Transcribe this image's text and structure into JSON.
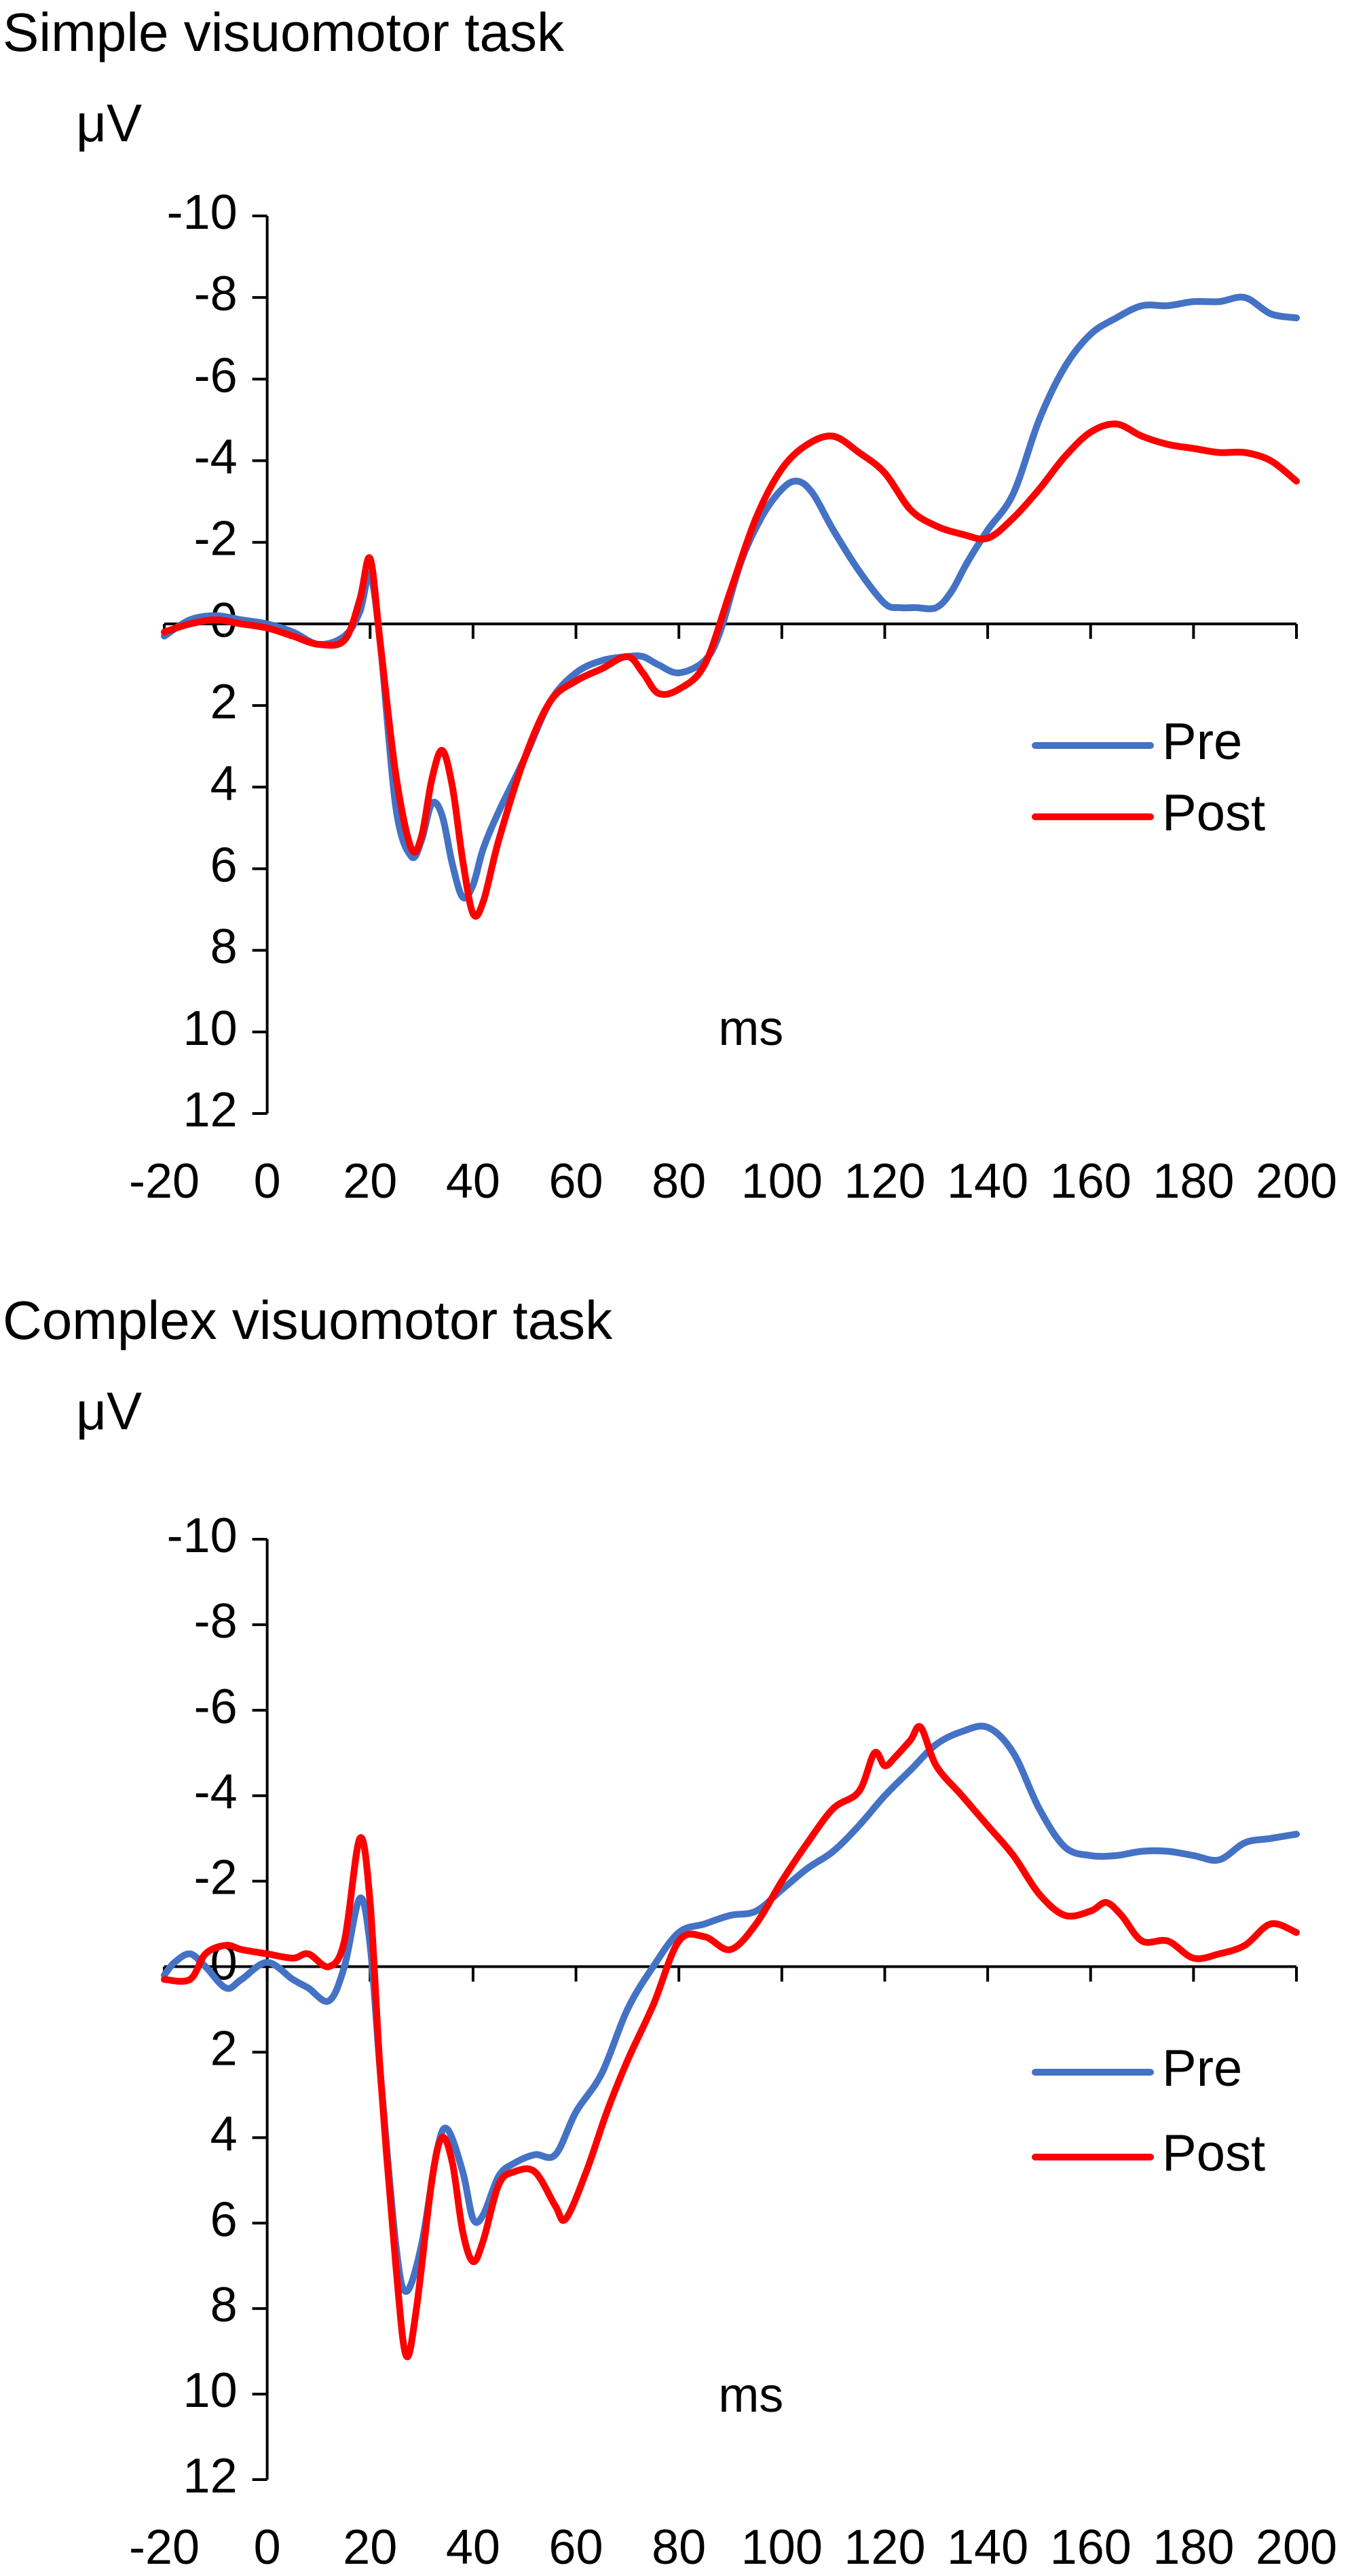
{
  "chart_data": [
    {
      "type": "line",
      "title": "Simple visuomotor task",
      "ylabel": "μV",
      "xlabel": "ms",
      "xlim": [
        -20,
        200
      ],
      "ylim": [
        12,
        -10
      ],
      "y_inverted": true,
      "x_ticks": [
        -20,
        0,
        20,
        40,
        60,
        80,
        100,
        120,
        140,
        160,
        180,
        200
      ],
      "y_ticks": [
        -10,
        -8,
        -6,
        -4,
        -2,
        0,
        2,
        4,
        6,
        8,
        10,
        12
      ],
      "grid": false,
      "legend_position": "right-middle",
      "series": [
        {
          "name": "Pre",
          "color": "#4472C4",
          "points": [
            [
              -20,
              0.3
            ],
            [
              -15,
              -0.1
            ],
            [
              -10,
              -0.2
            ],
            [
              -5,
              -0.1
            ],
            [
              0,
              0.0
            ],
            [
              5,
              0.2
            ],
            [
              10,
              0.5
            ],
            [
              15,
              0.3
            ],
            [
              18,
              -0.3
            ],
            [
              20,
              -1.2
            ],
            [
              22,
              0.5
            ],
            [
              25,
              4.5
            ],
            [
              28,
              5.7
            ],
            [
              30,
              5.3
            ],
            [
              32,
              4.4
            ],
            [
              34,
              4.7
            ],
            [
              36,
              5.9
            ],
            [
              38,
              6.7
            ],
            [
              40,
              6.4
            ],
            [
              42,
              5.5
            ],
            [
              45,
              4.6
            ],
            [
              50,
              3.3
            ],
            [
              55,
              1.9
            ],
            [
              60,
              1.2
            ],
            [
              65,
              0.9
            ],
            [
              70,
              0.8
            ],
            [
              73,
              0.8
            ],
            [
              76,
              1.0
            ],
            [
              80,
              1.2
            ],
            [
              85,
              0.9
            ],
            [
              88,
              0.2
            ],
            [
              92,
              -1.5
            ],
            [
              96,
              -2.6
            ],
            [
              100,
              -3.3
            ],
            [
              103,
              -3.5
            ],
            [
              106,
              -3.2
            ],
            [
              110,
              -2.3
            ],
            [
              115,
              -1.3
            ],
            [
              120,
              -0.5
            ],
            [
              123,
              -0.4
            ],
            [
              126,
              -0.4
            ],
            [
              130,
              -0.4
            ],
            [
              133,
              -0.8
            ],
            [
              136,
              -1.5
            ],
            [
              140,
              -2.3
            ],
            [
              145,
              -3.2
            ],
            [
              150,
              -5.0
            ],
            [
              155,
              -6.3
            ],
            [
              160,
              -7.1
            ],
            [
              165,
              -7.5
            ],
            [
              170,
              -7.8
            ],
            [
              175,
              -7.8
            ],
            [
              180,
              -7.9
            ],
            [
              185,
              -7.9
            ],
            [
              190,
              -8.0
            ],
            [
              195,
              -7.6
            ],
            [
              200,
              -7.5
            ]
          ]
        },
        {
          "name": "Post",
          "color": "#FF0000",
          "points": [
            [
              -20,
              0.2
            ],
            [
              -15,
              0.0
            ],
            [
              -10,
              -0.1
            ],
            [
              -5,
              0.0
            ],
            [
              0,
              0.1
            ],
            [
              5,
              0.3
            ],
            [
              10,
              0.5
            ],
            [
              15,
              0.4
            ],
            [
              18,
              -0.6
            ],
            [
              20,
              -1.6
            ],
            [
              22,
              0.5
            ],
            [
              25,
              3.7
            ],
            [
              28,
              5.5
            ],
            [
              30,
              5.2
            ],
            [
              32,
              3.8
            ],
            [
              34,
              3.1
            ],
            [
              36,
              4.0
            ],
            [
              38,
              5.8
            ],
            [
              40,
              7.1
            ],
            [
              42,
              6.8
            ],
            [
              45,
              5.3
            ],
            [
              50,
              3.3
            ],
            [
              55,
              1.9
            ],
            [
              60,
              1.4
            ],
            [
              65,
              1.1
            ],
            [
              70,
              0.8
            ],
            [
              73,
              1.2
            ],
            [
              76,
              1.7
            ],
            [
              80,
              1.6
            ],
            [
              85,
              1.0
            ],
            [
              90,
              -0.8
            ],
            [
              95,
              -2.6
            ],
            [
              100,
              -3.8
            ],
            [
              105,
              -4.4
            ],
            [
              110,
              -4.6
            ],
            [
              115,
              -4.2
            ],
            [
              120,
              -3.7
            ],
            [
              125,
              -2.8
            ],
            [
              130,
              -2.4
            ],
            [
              135,
              -2.2
            ],
            [
              140,
              -2.1
            ],
            [
              145,
              -2.6
            ],
            [
              150,
              -3.3
            ],
            [
              155,
              -4.1
            ],
            [
              160,
              -4.7
            ],
            [
              165,
              -4.9
            ],
            [
              170,
              -4.6
            ],
            [
              175,
              -4.4
            ],
            [
              180,
              -4.3
            ],
            [
              185,
              -4.2
            ],
            [
              190,
              -4.2
            ],
            [
              195,
              -4.0
            ],
            [
              200,
              -3.5
            ]
          ]
        }
      ]
    },
    {
      "type": "line",
      "title": "Complex visuomotor task",
      "ylabel": "μV",
      "xlabel": "ms",
      "xlim": [
        -20,
        200
      ],
      "ylim": [
        12,
        -10
      ],
      "y_inverted": true,
      "x_ticks": [
        -20,
        0,
        20,
        40,
        60,
        80,
        100,
        120,
        140,
        160,
        180,
        200
      ],
      "y_ticks": [
        -10,
        -8,
        -6,
        -4,
        -2,
        0,
        2,
        4,
        6,
        8,
        10,
        12
      ],
      "grid": false,
      "legend_position": "right-middle",
      "series": [
        {
          "name": "Pre",
          "color": "#4472C4",
          "points": [
            [
              -20,
              0.2
            ],
            [
              -18,
              -0.1
            ],
            [
              -15,
              -0.3
            ],
            [
              -12,
              0.0
            ],
            [
              -8,
              0.5
            ],
            [
              -5,
              0.3
            ],
            [
              0,
              -0.1
            ],
            [
              5,
              0.3
            ],
            [
              8,
              0.5
            ],
            [
              12,
              0.8
            ],
            [
              15,
              0.0
            ],
            [
              18,
              -1.6
            ],
            [
              20,
              -0.5
            ],
            [
              22,
              2.5
            ],
            [
              25,
              6.5
            ],
            [
              27,
              7.6
            ],
            [
              30,
              6.5
            ],
            [
              33,
              4.3
            ],
            [
              35,
              3.8
            ],
            [
              38,
              4.8
            ],
            [
              40,
              5.9
            ],
            [
              42,
              5.8
            ],
            [
              45,
              4.9
            ],
            [
              48,
              4.6
            ],
            [
              52,
              4.4
            ],
            [
              56,
              4.4
            ],
            [
              60,
              3.4
            ],
            [
              65,
              2.5
            ],
            [
              70,
              1.0
            ],
            [
              75,
              0.0
            ],
            [
              80,
              -0.8
            ],
            [
              85,
              -1.0
            ],
            [
              90,
              -1.2
            ],
            [
              95,
              -1.3
            ],
            [
              100,
              -1.8
            ],
            [
              105,
              -2.3
            ],
            [
              110,
              -2.7
            ],
            [
              115,
              -3.3
            ],
            [
              120,
              -4.0
            ],
            [
              125,
              -4.6
            ],
            [
              130,
              -5.2
            ],
            [
              135,
              -5.5
            ],
            [
              140,
              -5.6
            ],
            [
              145,
              -5.0
            ],
            [
              150,
              -3.7
            ],
            [
              155,
              -2.8
            ],
            [
              160,
              -2.6
            ],
            [
              165,
              -2.6
            ],
            [
              170,
              -2.7
            ],
            [
              175,
              -2.7
            ],
            [
              180,
              -2.6
            ],
            [
              185,
              -2.5
            ],
            [
              190,
              -2.9
            ],
            [
              195,
              -3.0
            ],
            [
              200,
              -3.1
            ]
          ]
        },
        {
          "name": "Post",
          "color": "#FF0000",
          "points": [
            [
              -20,
              0.3
            ],
            [
              -15,
              0.3
            ],
            [
              -12,
              -0.3
            ],
            [
              -8,
              -0.5
            ],
            [
              -5,
              -0.4
            ],
            [
              0,
              -0.3
            ],
            [
              5,
              -0.2
            ],
            [
              8,
              -0.3
            ],
            [
              12,
              0.0
            ],
            [
              15,
              -0.6
            ],
            [
              18,
              -3.0
            ],
            [
              20,
              -1.5
            ],
            [
              22,
              2.5
            ],
            [
              25,
              7.0
            ],
            [
              27,
              9.1
            ],
            [
              29,
              8.0
            ],
            [
              32,
              5.0
            ],
            [
              34,
              4.0
            ],
            [
              36,
              4.6
            ],
            [
              38,
              6.2
            ],
            [
              40,
              6.9
            ],
            [
              42,
              6.4
            ],
            [
              45,
              5.1
            ],
            [
              48,
              4.8
            ],
            [
              52,
              4.8
            ],
            [
              56,
              5.6
            ],
            [
              58,
              5.9
            ],
            [
              62,
              4.8
            ],
            [
              66,
              3.4
            ],
            [
              70,
              2.2
            ],
            [
              75,
              0.9
            ],
            [
              80,
              -0.6
            ],
            [
              85,
              -0.7
            ],
            [
              90,
              -0.4
            ],
            [
              95,
              -1.0
            ],
            [
              100,
              -2.0
            ],
            [
              105,
              -2.9
            ],
            [
              110,
              -3.7
            ],
            [
              115,
              -4.1
            ],
            [
              118,
              -5.0
            ],
            [
              120,
              -4.7
            ],
            [
              122,
              -4.9
            ],
            [
              125,
              -5.3
            ],
            [
              127,
              -5.6
            ],
            [
              130,
              -4.7
            ],
            [
              135,
              -4.0
            ],
            [
              140,
              -3.3
            ],
            [
              145,
              -2.6
            ],
            [
              150,
              -1.7
            ],
            [
              155,
              -1.2
            ],
            [
              160,
              -1.3
            ],
            [
              163,
              -1.5
            ],
            [
              166,
              -1.2
            ],
            [
              170,
              -0.6
            ],
            [
              175,
              -0.6
            ],
            [
              180,
              -0.2
            ],
            [
              185,
              -0.3
            ],
            [
              190,
              -0.5
            ],
            [
              195,
              -1.0
            ],
            [
              200,
              -0.8
            ]
          ]
        }
      ]
    }
  ]
}
